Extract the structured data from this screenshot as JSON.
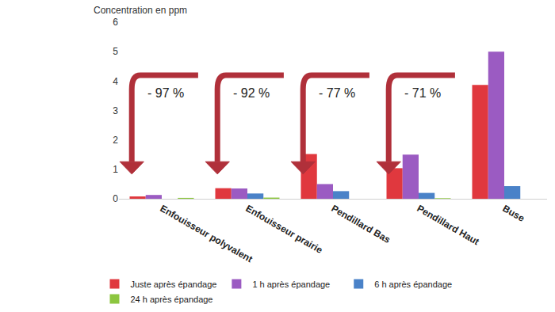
{
  "chart_data": {
    "type": "bar",
    "y_label": "Concentration en ppm",
    "categories": [
      "Enfouisseur polyvalent",
      "Enfouisseur prairie",
      "Pendillard Bas",
      "Pendillard Haut",
      "Buse"
    ],
    "series": [
      {
        "name": "Juste après épandage",
        "color": "#e0383e",
        "values": [
          0.08,
          0.36,
          1.52,
          1.04,
          3.87
        ]
      },
      {
        "name": "1 h après épandage",
        "color": "#9b5bc2",
        "values": [
          0.13,
          0.35,
          0.5,
          1.5,
          5.0
        ]
      },
      {
        "name": "6 h après épandage",
        "color": "#4a82c8",
        "values": [
          0,
          0.18,
          0.26,
          0.2,
          0.43
        ]
      },
      {
        "name": "24 h après épandage",
        "color": "#8cc63f",
        "values": [
          0.03,
          0.04,
          0,
          0.02,
          0
        ]
      }
    ],
    "ylim": [
      0,
      6
    ],
    "yticks": [
      0,
      1,
      2,
      3,
      4,
      5,
      6
    ],
    "grid": false,
    "legend": "bottom",
    "annotations": [
      {
        "category": "Enfouisseur polyvalent",
        "text": "- 97 %"
      },
      {
        "category": "Enfouisseur prairie",
        "text": "- 92 %"
      },
      {
        "category": "Pendillard Bas",
        "text": "- 77 %"
      },
      {
        "category": "Pendillard Haut",
        "text": "- 71 %"
      }
    ]
  }
}
